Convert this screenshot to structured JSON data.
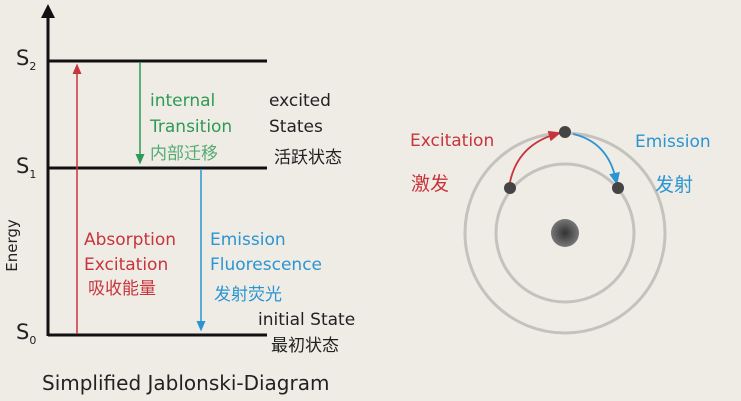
{
  "title": "Simplified Jablonski-Diagram",
  "axis_label": "Energy",
  "levels": [
    {
      "name": "S",
      "sub": "2"
    },
    {
      "name": "S",
      "sub": "1"
    },
    {
      "name": "S",
      "sub": "0"
    }
  ],
  "internal": {
    "line1": "internal",
    "line2": "Transition",
    "cn": "内部迁移"
  },
  "excited": {
    "line1": "excited",
    "line2": "States",
    "cn": "活跃状态"
  },
  "absorption": {
    "line1": "Absorption",
    "line2": "Excitation",
    "cn": "吸收能量"
  },
  "emission": {
    "line1": "Emission",
    "line2": "Fluorescence",
    "cn": "发射荧光"
  },
  "initial": {
    "line1": "initial State",
    "cn": "最初状态"
  },
  "atom": {
    "excitation": "Excitation",
    "excitation_cn": "激发",
    "emission": "Emission",
    "emission_cn": "发射"
  },
  "colors": {
    "absorption": "#c8343c",
    "internal": "#2e9a55",
    "emission": "#2a95d2",
    "background": "#efece6"
  }
}
